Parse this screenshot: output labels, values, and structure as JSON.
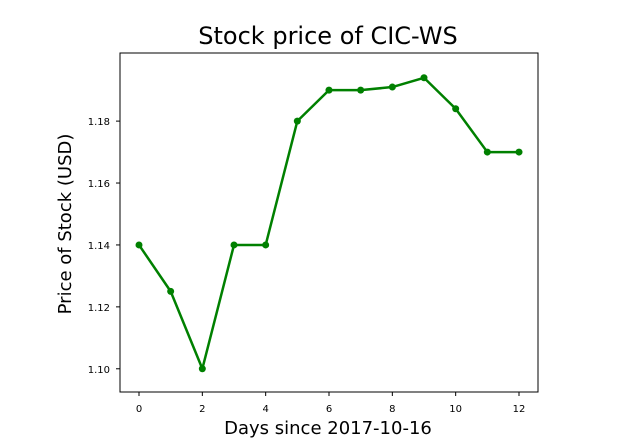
{
  "chart_data": {
    "type": "line",
    "title": "Stock price of CIC-WS",
    "xlabel": "Days since 2017-10-16",
    "ylabel": "Price of Stock (USD)",
    "xlim": [
      -0.6,
      12.6
    ],
    "ylim": [
      1.0925,
      1.202
    ],
    "xticks": [
      0,
      2,
      4,
      6,
      8,
      10,
      12
    ],
    "xtick_labels": [
      "0",
      "2",
      "4",
      "6",
      "8",
      "10",
      "12"
    ],
    "yticks": [
      1.1,
      1.12,
      1.14,
      1.16,
      1.18
    ],
    "ytick_labels": [
      "1.10",
      "1.12",
      "1.14",
      "1.16",
      "1.18"
    ],
    "grid": false,
    "legend": "none",
    "series": [
      {
        "color": "#008000",
        "marker": "circle",
        "x": [
          0,
          1,
          2,
          3,
          4,
          5,
          6,
          7,
          8,
          9,
          10,
          11,
          12
        ],
        "y": [
          1.14,
          1.125,
          1.1,
          1.14,
          1.14,
          1.18,
          1.19,
          1.19,
          1.191,
          1.194,
          1.184,
          1.17,
          1.17
        ]
      }
    ]
  }
}
